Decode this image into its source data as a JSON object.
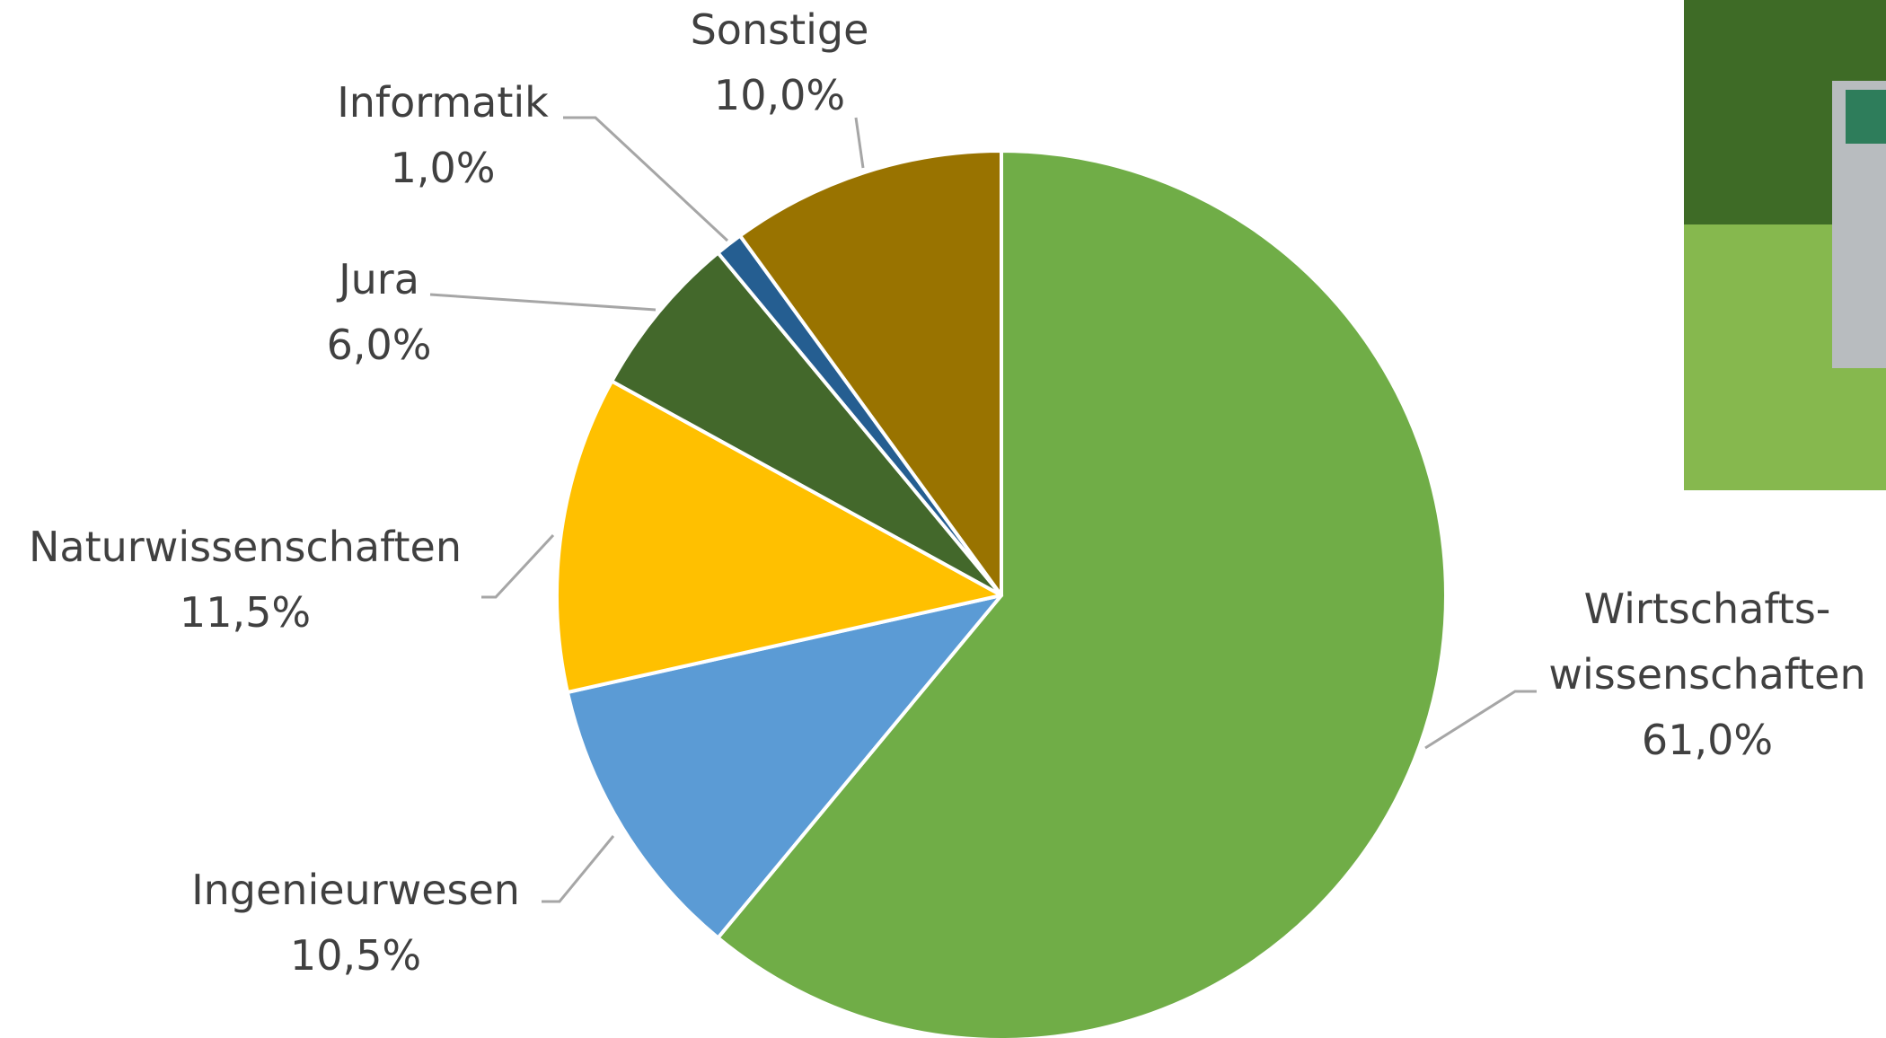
{
  "chart_data": {
    "type": "pie",
    "categories": [
      "Wirtschafts-\nwissenschaften",
      "Ingenieurwesen",
      "Naturwissenschaften",
      "Jura",
      "Informatik",
      "Sonstige"
    ],
    "values": [
      61.0,
      10.5,
      11.5,
      6.0,
      1.0,
      10.0
    ],
    "value_labels": [
      "61,0%",
      "10,5%",
      "11,5%",
      "6,0%",
      "1,0%",
      "10,0%"
    ],
    "colors": [
      "#70ad47",
      "#5b9bd5",
      "#ffc000",
      "#43682b",
      "#255e91",
      "#997300"
    ]
  }
}
